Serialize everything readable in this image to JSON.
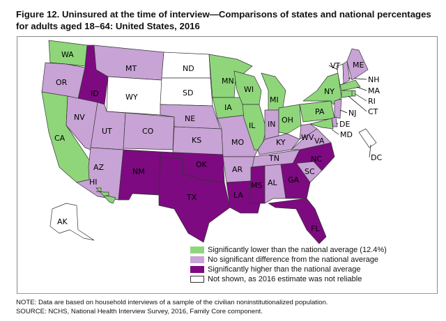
{
  "title": "Figure 12. Uninsured at the time of interview—Comparisons of states and national percentages for adults aged 18–64: United States, 2016",
  "colors": {
    "lower": "#8fd67b",
    "nodiff": "#c8a3d5",
    "higher": "#7d0a80",
    "notshown": "#ffffff"
  },
  "legend": [
    {
      "key": "lower",
      "label": "Significantly lower than the national average (12.4%)"
    },
    {
      "key": "nodiff",
      "label": "No significant difference from the national average"
    },
    {
      "key": "higher",
      "label": "Significantly higher than the national average"
    },
    {
      "key": "notshown",
      "label": "Not shown, as 2016 estimate was not reliable"
    }
  ],
  "states": [
    {
      "abbr": "WA",
      "cat": "lower"
    },
    {
      "abbr": "OR",
      "cat": "nodiff"
    },
    {
      "abbr": "CA",
      "cat": "lower"
    },
    {
      "abbr": "ID",
      "cat": "higher"
    },
    {
      "abbr": "NV",
      "cat": "nodiff"
    },
    {
      "abbr": "MT",
      "cat": "nodiff"
    },
    {
      "abbr": "WY",
      "cat": "notshown"
    },
    {
      "abbr": "UT",
      "cat": "nodiff"
    },
    {
      "abbr": "AZ",
      "cat": "nodiff"
    },
    {
      "abbr": "CO",
      "cat": "nodiff"
    },
    {
      "abbr": "NM",
      "cat": "higher"
    },
    {
      "abbr": "ND",
      "cat": "notshown"
    },
    {
      "abbr": "SD",
      "cat": "notshown"
    },
    {
      "abbr": "NE",
      "cat": "nodiff"
    },
    {
      "abbr": "KS",
      "cat": "nodiff"
    },
    {
      "abbr": "OK",
      "cat": "higher"
    },
    {
      "abbr": "TX",
      "cat": "higher"
    },
    {
      "abbr": "MN",
      "cat": "lower"
    },
    {
      "abbr": "IA",
      "cat": "lower"
    },
    {
      "abbr": "MO",
      "cat": "nodiff"
    },
    {
      "abbr": "AR",
      "cat": "nodiff"
    },
    {
      "abbr": "LA",
      "cat": "higher"
    },
    {
      "abbr": "WI",
      "cat": "lower"
    },
    {
      "abbr": "IL",
      "cat": "lower"
    },
    {
      "abbr": "MI",
      "cat": "lower"
    },
    {
      "abbr": "IN",
      "cat": "nodiff"
    },
    {
      "abbr": "OH",
      "cat": "lower"
    },
    {
      "abbr": "KY",
      "cat": "nodiff"
    },
    {
      "abbr": "TN",
      "cat": "nodiff"
    },
    {
      "abbr": "MS",
      "cat": "higher"
    },
    {
      "abbr": "AL",
      "cat": "nodiff"
    },
    {
      "abbr": "GA",
      "cat": "higher"
    },
    {
      "abbr": "FL",
      "cat": "higher"
    },
    {
      "abbr": "SC",
      "cat": "nodiff"
    },
    {
      "abbr": "NC",
      "cat": "higher"
    },
    {
      "abbr": "VA",
      "cat": "nodiff"
    },
    {
      "abbr": "WV",
      "cat": "nodiff"
    },
    {
      "abbr": "PA",
      "cat": "lower"
    },
    {
      "abbr": "NY",
      "cat": "lower"
    },
    {
      "abbr": "VT",
      "cat": "notshown"
    },
    {
      "abbr": "NH",
      "cat": "nodiff"
    },
    {
      "abbr": "ME",
      "cat": "nodiff"
    },
    {
      "abbr": "MA",
      "cat": "lower"
    },
    {
      "abbr": "RI",
      "cat": "lower"
    },
    {
      "abbr": "CT",
      "cat": "lower"
    },
    {
      "abbr": "NJ",
      "cat": "nodiff"
    },
    {
      "abbr": "DE",
      "cat": "nodiff"
    },
    {
      "abbr": "MD",
      "cat": "lower"
    },
    {
      "abbr": "DC",
      "cat": "notshown"
    },
    {
      "abbr": "AK",
      "cat": "notshown"
    },
    {
      "abbr": "HI",
      "cat": "lower"
    }
  ],
  "note": "NOTE: Data are based on household interviews of a sample of the civilian noninstitutionalized population.",
  "source": "SOURCE: NCHS, National Health Interview Survey, 2016, Family Core component."
}
